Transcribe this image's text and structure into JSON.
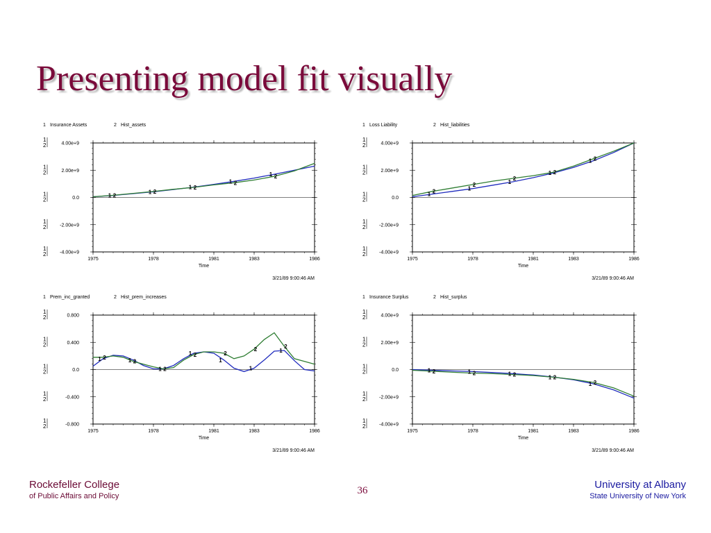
{
  "slide": {
    "title": "Presenting model fit visually",
    "page_number": "36",
    "footer_left_line1": "Rockefeller College",
    "footer_left_line2": "of Public Affairs and Policy",
    "footer_right_line1": "University at Albany",
    "footer_right_line2": "State University of New York"
  },
  "colors": {
    "series1": "#1f2bbd",
    "series2": "#2e7d32",
    "title": "#7a0a3a",
    "axis": "#000000"
  },
  "chart_data": [
    {
      "type": "line",
      "legend": [
        {
          "id": "1",
          "name": "Insurance Assets"
        },
        {
          "id": "2",
          "name": "Hist_assets"
        }
      ],
      "xlabel": "Time",
      "x_ticks": [
        "1975",
        "1978",
        "1981",
        "1983",
        "1986"
      ],
      "xlim": [
        1975,
        1986
      ],
      "y_ticks": [
        "4.00e+9",
        "2.00e+9",
        "0.0",
        "-2.00e+9",
        "-4.00e+9"
      ],
      "ylim": [
        -4000000000,
        4000000000
      ],
      "timestamp": "3/21/89  9:00:46 AM",
      "series": [
        {
          "id": "1",
          "x": [
            1975,
            1976,
            1977,
            1978,
            1979,
            1980,
            1981,
            1982,
            1983,
            1984,
            1985,
            1986
          ],
          "values": [
            50000000.0,
            150000000.0,
            280000000.0,
            420000000.0,
            580000000.0,
            760000000.0,
            960000000.0,
            1180000000.0,
            1420000000.0,
            1700000000.0,
            2000000000.0,
            2300000000.0
          ]
        },
        {
          "id": "2",
          "x": [
            1975,
            1976,
            1977,
            1978,
            1979,
            1980,
            1981,
            1982,
            1983,
            1984,
            1985,
            1986
          ],
          "values": [
            50000000.0,
            160000000.0,
            300000000.0,
            440000000.0,
            600000000.0,
            740000000.0,
            920000000.0,
            1080000000.0,
            1280000000.0,
            1550000000.0,
            1950000000.0,
            2500000000.0
          ]
        }
      ]
    },
    {
      "type": "line",
      "legend": [
        {
          "id": "1",
          "name": "Loss Liability"
        },
        {
          "id": "2",
          "name": "Hist_liabilities"
        }
      ],
      "xlabel": "Time",
      "x_ticks": [
        "1975",
        "1978",
        "1981",
        "1983",
        "1986"
      ],
      "xlim": [
        1975,
        1986
      ],
      "y_ticks": [
        "4.00e+9",
        "2.00e+9",
        "0.0",
        "-2.00e+9",
        "-4.00e+9"
      ],
      "ylim": [
        -4000000000,
        4000000000
      ],
      "timestamp": "3/21/89  9:00:46 AM",
      "series": [
        {
          "id": "1",
          "x": [
            1975,
            1976,
            1977,
            1978,
            1979,
            1980,
            1981,
            1982,
            1983,
            1984,
            1985,
            1986
          ],
          "values": [
            50000000.0,
            250000000.0,
            450000000.0,
            650000000.0,
            900000000.0,
            1150000000.0,
            1450000000.0,
            1800000000.0,
            2200000000.0,
            2700000000.0,
            3300000000.0,
            4000000000.0
          ]
        },
        {
          "id": "2",
          "x": [
            1975,
            1976,
            1977,
            1978,
            1979,
            1980,
            1981,
            1982,
            1983,
            1984,
            1985,
            1986
          ],
          "values": [
            150000000.0,
            450000000.0,
            700000000.0,
            950000000.0,
            1200000000.0,
            1400000000.0,
            1600000000.0,
            1850000000.0,
            2300000000.0,
            2850000000.0,
            3400000000.0,
            4000000000.0
          ]
        }
      ]
    },
    {
      "type": "line",
      "legend": [
        {
          "id": "1",
          "name": "Prem_inc_granted"
        },
        {
          "id": "2",
          "name": "Hist_prem_increases"
        }
      ],
      "xlabel": "Time",
      "x_ticks": [
        "1975",
        "1978",
        "1981",
        "1983",
        "1986"
      ],
      "xlim": [
        1975,
        1986
      ],
      "y_ticks": [
        "0.800",
        "0.400",
        "0.0",
        "-0.400",
        "-0.800"
      ],
      "ylim": [
        -0.8,
        0.8
      ],
      "timestamp": "3/21/89  9:00:46 AM",
      "series": [
        {
          "id": "1",
          "x": [
            1975,
            1975.5,
            1976,
            1976.5,
            1977,
            1977.5,
            1978,
            1978.5,
            1979,
            1979.5,
            1980,
            1980.5,
            1981,
            1981.5,
            1982,
            1982.5,
            1983,
            1983.5,
            1984,
            1984.5,
            1985,
            1985.5,
            1986
          ],
          "values": [
            0.05,
            0.16,
            0.21,
            0.2,
            0.14,
            0.06,
            0.01,
            0.01,
            0.06,
            0.16,
            0.24,
            0.26,
            0.24,
            0.14,
            0.02,
            -0.03,
            0.02,
            0.14,
            0.27,
            0.28,
            0.13,
            0.0,
            -0.02
          ]
        },
        {
          "id": "2",
          "x": [
            1975,
            1975.5,
            1976,
            1976.5,
            1977,
            1977.5,
            1978,
            1978.5,
            1979,
            1979.5,
            1980,
            1980.5,
            1981,
            1981.5,
            1982,
            1982.5,
            1983,
            1983.5,
            1984,
            1984.5,
            1985,
            1985.5,
            1986
          ],
          "values": [
            0.18,
            0.18,
            0.2,
            0.18,
            0.12,
            0.08,
            0.04,
            0.01,
            0.03,
            0.14,
            0.22,
            0.26,
            0.26,
            0.24,
            0.16,
            0.2,
            0.3,
            0.44,
            0.54,
            0.34,
            0.16,
            0.12,
            0.08
          ]
        }
      ]
    },
    {
      "type": "line",
      "legend": [
        {
          "id": "1",
          "name": "Insurance Surplus"
        },
        {
          "id": "2",
          "name": "Hist_surplus"
        }
      ],
      "xlabel": "Time",
      "x_ticks": [
        "1975",
        "1978",
        "1981",
        "1983",
        "1986"
      ],
      "xlim": [
        1975,
        1986
      ],
      "y_ticks": [
        "4.00e+9",
        "2.00e+9",
        "0.0",
        "-2.00e+9",
        "-4.00e+9"
      ],
      "ylim": [
        -4000000000,
        4000000000
      ],
      "timestamp": "3/21/89  9:00:46 AM",
      "series": [
        {
          "id": "1",
          "x": [
            1975,
            1976,
            1977,
            1978,
            1979,
            1980,
            1981,
            1982,
            1983,
            1984,
            1985,
            1986
          ],
          "values": [
            0.0,
            -50000000.0,
            -100000000.0,
            -150000000.0,
            -220000000.0,
            -300000000.0,
            -400000000.0,
            -550000000.0,
            -750000000.0,
            -1050000000.0,
            -1500000000.0,
            -2100000000.0
          ]
        },
        {
          "id": "2",
          "x": [
            1975,
            1976,
            1977,
            1978,
            1979,
            1980,
            1981,
            1982,
            1983,
            1984,
            1985,
            1986
          ],
          "values": [
            -50000000.0,
            -120000000.0,
            -200000000.0,
            -260000000.0,
            -300000000.0,
            -360000000.0,
            -440000000.0,
            -560000000.0,
            -720000000.0,
            -950000000.0,
            -1350000000.0,
            -1950000000.0
          ]
        }
      ]
    }
  ]
}
